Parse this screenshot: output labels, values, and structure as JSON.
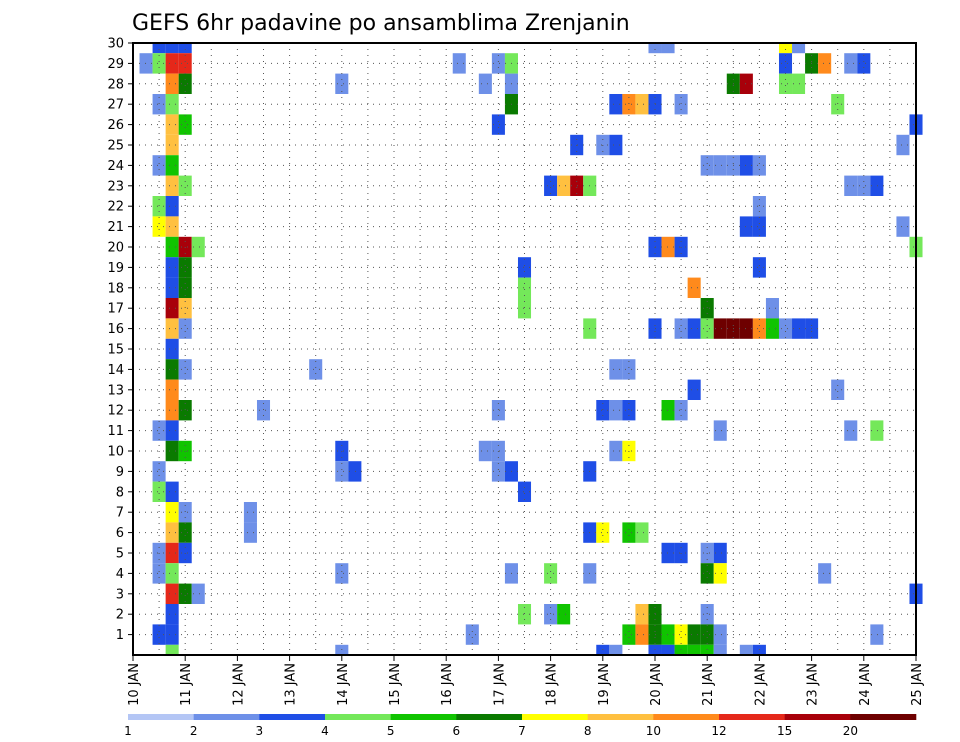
{
  "chart_data": {
    "type": "heatmap",
    "title": "GEFS 6hr padavine po ansamblima Zrenjanin",
    "xlabel": "",
    "ylabel": "",
    "x_ticks": [
      "10 JAN",
      "11 JAN",
      "12 JAN",
      "13 JAN",
      "14 JAN",
      "15 JAN",
      "16 JAN",
      "17 JAN",
      "18 JAN",
      "19 JAN",
      "20 JAN",
      "21 JAN",
      "22 JAN",
      "23 JAN",
      "24 JAN",
      "25 JAN"
    ],
    "y_ticks": [
      "1",
      "2",
      "3",
      "4",
      "5",
      "6",
      "7",
      "8",
      "9",
      "10",
      "11",
      "12",
      "13",
      "14",
      "15",
      "16",
      "17",
      "18",
      "19",
      "20",
      "21",
      "22",
      "23",
      "24",
      "25",
      "26",
      "27",
      "28",
      "29",
      "30"
    ],
    "time_step_hours": 6,
    "xlim_days": [
      10,
      25
    ],
    "ylim_members": [
      0,
      30
    ],
    "grid": true,
    "legend_position": "bottom",
    "colorbar": {
      "labels": [
        "1",
        "2",
        "3",
        "4",
        "5",
        "6",
        "7",
        "8",
        "10",
        "12",
        "15",
        "20"
      ],
      "colors": [
        "#b4c6f5",
        "#6e90e8",
        "#1f4ee6",
        "#74e85a",
        "#10c400",
        "#0a7a00",
        "#ffff00",
        "#ffc040",
        "#ff8a1c",
        "#e5281a",
        "#a8000a",
        "#6e0000"
      ]
    },
    "cells": [
      [
        10.5,
        30,
        2
      ],
      [
        10.75,
        30,
        2
      ],
      [
        11,
        30,
        2
      ],
      [
        20,
        30,
        1
      ],
      [
        20.25,
        30,
        1
      ],
      [
        22.5,
        30,
        6
      ],
      [
        22.75,
        30,
        1
      ],
      [
        10.25,
        29,
        1
      ],
      [
        10.5,
        29,
        3
      ],
      [
        10.75,
        29,
        9
      ],
      [
        11,
        29,
        9
      ],
      [
        16.25,
        29,
        1
      ],
      [
        17,
        29,
        1
      ],
      [
        17.25,
        29,
        3
      ],
      [
        22.5,
        29,
        2
      ],
      [
        23,
        29,
        5
      ],
      [
        23.25,
        29,
        8
      ],
      [
        23.75,
        29,
        1
      ],
      [
        24,
        29,
        2
      ],
      [
        10.75,
        28,
        8
      ],
      [
        11,
        28,
        5
      ],
      [
        14,
        28,
        1
      ],
      [
        16.75,
        28,
        1
      ],
      [
        17.25,
        28,
        1
      ],
      [
        21.5,
        28,
        5
      ],
      [
        21.75,
        28,
        10
      ],
      [
        22.5,
        28,
        3
      ],
      [
        22.75,
        28,
        3
      ],
      [
        10.5,
        27,
        1
      ],
      [
        10.75,
        27,
        3
      ],
      [
        17.25,
        27,
        5
      ],
      [
        19.25,
        27,
        2
      ],
      [
        19.5,
        27,
        8
      ],
      [
        19.75,
        27,
        7
      ],
      [
        20,
        27,
        2
      ],
      [
        20.5,
        27,
        1
      ],
      [
        23.5,
        27,
        3
      ],
      [
        10.75,
        26,
        7
      ],
      [
        11,
        26,
        4
      ],
      [
        17,
        26,
        2
      ],
      [
        25,
        26,
        2
      ],
      [
        10.75,
        25,
        7
      ],
      [
        18.5,
        25,
        2
      ],
      [
        19,
        25,
        1
      ],
      [
        19.25,
        25,
        2
      ],
      [
        24.75,
        25,
        1
      ],
      [
        10.5,
        24,
        1
      ],
      [
        10.75,
        24,
        4
      ],
      [
        21,
        24,
        1
      ],
      [
        21.25,
        24,
        1
      ],
      [
        21.5,
        24,
        1
      ],
      [
        21.75,
        24,
        2
      ],
      [
        22,
        24,
        1
      ],
      [
        10.75,
        23,
        7
      ],
      [
        11,
        23,
        3
      ],
      [
        18,
        23,
        2
      ],
      [
        18.25,
        23,
        7
      ],
      [
        18.5,
        23,
        10
      ],
      [
        18.75,
        23,
        3
      ],
      [
        23.75,
        23,
        1
      ],
      [
        24,
        23,
        1
      ],
      [
        24.25,
        23,
        2
      ],
      [
        10.5,
        22,
        3
      ],
      [
        10.75,
        22,
        2
      ],
      [
        22,
        22,
        1
      ],
      [
        10.5,
        21,
        6
      ],
      [
        10.75,
        21,
        7
      ],
      [
        21.75,
        21,
        2
      ],
      [
        22,
        21,
        2
      ],
      [
        24.75,
        21,
        1
      ],
      [
        10.75,
        20,
        4
      ],
      [
        11,
        20,
        10
      ],
      [
        11.25,
        20,
        3
      ],
      [
        20,
        20,
        2
      ],
      [
        20.25,
        20,
        8
      ],
      [
        20.5,
        20,
        2
      ],
      [
        25,
        20,
        3
      ],
      [
        10.75,
        19,
        2
      ],
      [
        11,
        19,
        5
      ],
      [
        17.5,
        19,
        2
      ],
      [
        22,
        19,
        2
      ],
      [
        10.75,
        18,
        2
      ],
      [
        11,
        18,
        5
      ],
      [
        17.5,
        18,
        3
      ],
      [
        20.75,
        18,
        8
      ],
      [
        10.75,
        17,
        10
      ],
      [
        11,
        17,
        7
      ],
      [
        17.5,
        17,
        3
      ],
      [
        21,
        17,
        5
      ],
      [
        22.25,
        17,
        1
      ],
      [
        10.75,
        16,
        7
      ],
      [
        11,
        16,
        1
      ],
      [
        18.75,
        16,
        3
      ],
      [
        20,
        16,
        2
      ],
      [
        20.5,
        16,
        1
      ],
      [
        20.75,
        16,
        2
      ],
      [
        21,
        16,
        3
      ],
      [
        21.25,
        16,
        11
      ],
      [
        21.5,
        16,
        11
      ],
      [
        21.75,
        16,
        11
      ],
      [
        22,
        16,
        8
      ],
      [
        22.25,
        16,
        4
      ],
      [
        22.5,
        16,
        1
      ],
      [
        22.75,
        16,
        2
      ],
      [
        23,
        16,
        2
      ],
      [
        10.75,
        15,
        2
      ],
      [
        10.75,
        14,
        5
      ],
      [
        11,
        14,
        1
      ],
      [
        13.5,
        14,
        1
      ],
      [
        19.25,
        14,
        1
      ],
      [
        19.5,
        14,
        1
      ],
      [
        10.75,
        13,
        8
      ],
      [
        20.75,
        13,
        2
      ],
      [
        23.5,
        13,
        1
      ],
      [
        10.75,
        12,
        8
      ],
      [
        11,
        12,
        5
      ],
      [
        12.5,
        12,
        1
      ],
      [
        17,
        12,
        1
      ],
      [
        19,
        12,
        2
      ],
      [
        19.25,
        12,
        1
      ],
      [
        19.5,
        12,
        2
      ],
      [
        20.25,
        12,
        4
      ],
      [
        20.5,
        12,
        1
      ],
      [
        10.5,
        11,
        1
      ],
      [
        10.75,
        11,
        2
      ],
      [
        21.25,
        11,
        1
      ],
      [
        23.75,
        11,
        1
      ],
      [
        24.25,
        11,
        3
      ],
      [
        10.75,
        10,
        5
      ],
      [
        11,
        10,
        4
      ],
      [
        14,
        10,
        2
      ],
      [
        16.75,
        10,
        1
      ],
      [
        17,
        10,
        1
      ],
      [
        19.25,
        10,
        1
      ],
      [
        19.5,
        10,
        6
      ],
      [
        10.5,
        9,
        1
      ],
      [
        14,
        9,
        1
      ],
      [
        14.25,
        9,
        2
      ],
      [
        17,
        9,
        1
      ],
      [
        17.25,
        9,
        2
      ],
      [
        18.75,
        9,
        2
      ],
      [
        10.5,
        8,
        3
      ],
      [
        10.75,
        8,
        2
      ],
      [
        17.5,
        8,
        2
      ],
      [
        10.75,
        7,
        6
      ],
      [
        11,
        7,
        1
      ],
      [
        12.25,
        7,
        1
      ],
      [
        10.75,
        6,
        7
      ],
      [
        11,
        6,
        5
      ],
      [
        12.25,
        6,
        1
      ],
      [
        18.75,
        6,
        2
      ],
      [
        19,
        6,
        6
      ],
      [
        19.5,
        6,
        4
      ],
      [
        19.75,
        6,
        3
      ],
      [
        10.5,
        5,
        1
      ],
      [
        10.75,
        5,
        9
      ],
      [
        11,
        5,
        2
      ],
      [
        20.25,
        5,
        2
      ],
      [
        20.5,
        5,
        2
      ],
      [
        21,
        5,
        1
      ],
      [
        21.25,
        5,
        2
      ],
      [
        10.5,
        4,
        1
      ],
      [
        10.75,
        4,
        3
      ],
      [
        14,
        4,
        1
      ],
      [
        17.25,
        4,
        1
      ],
      [
        18,
        4,
        3
      ],
      [
        18.75,
        4,
        1
      ],
      [
        21,
        4,
        5
      ],
      [
        21.25,
        4,
        6
      ],
      [
        23.25,
        4,
        1
      ],
      [
        10.75,
        3,
        9
      ],
      [
        11,
        3,
        5
      ],
      [
        11.25,
        3,
        1
      ],
      [
        25,
        3,
        2
      ],
      [
        10.75,
        2,
        2
      ],
      [
        17.5,
        2,
        3
      ],
      [
        18,
        2,
        1
      ],
      [
        18.25,
        2,
        4
      ],
      [
        19.75,
        2,
        7
      ],
      [
        20,
        2,
        5
      ],
      [
        21,
        2,
        1
      ],
      [
        10.5,
        1,
        2
      ],
      [
        10.75,
        1,
        2
      ],
      [
        16.5,
        1,
        1
      ],
      [
        19.5,
        1,
        4
      ],
      [
        19.75,
        1,
        8
      ],
      [
        20,
        1,
        5
      ],
      [
        20.25,
        1,
        4
      ],
      [
        20.5,
        1,
        6
      ],
      [
        20.75,
        1,
        5
      ],
      [
        21,
        1,
        5
      ],
      [
        21.25,
        1,
        1
      ],
      [
        24.25,
        1,
        1
      ],
      [
        10.75,
        0,
        3
      ],
      [
        14,
        0,
        1
      ],
      [
        19,
        0,
        2
      ],
      [
        19.25,
        0,
        1
      ],
      [
        20,
        0,
        2
      ],
      [
        20.25,
        0,
        2
      ],
      [
        20.5,
        0,
        4
      ],
      [
        20.75,
        0,
        4
      ],
      [
        21,
        0,
        4
      ],
      [
        21.25,
        0,
        1
      ],
      [
        21.75,
        0,
        1
      ],
      [
        22,
        0,
        2
      ]
    ]
  }
}
